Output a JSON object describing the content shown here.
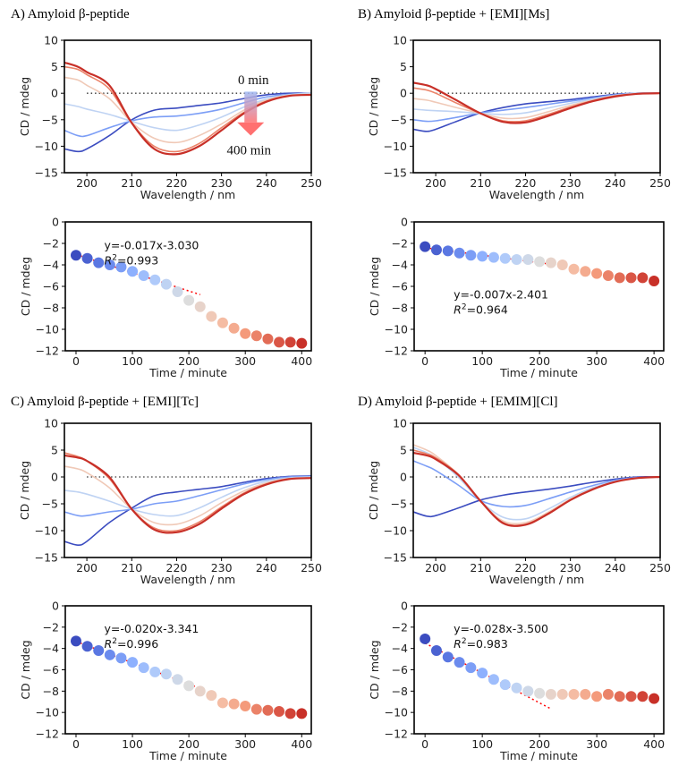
{
  "chart_data": [
    {
      "type": "line",
      "title": "A) Amyloid β-peptide",
      "xlabel": "Wavelength / nm",
      "ylabel": "CD / mdeg",
      "xlim": [
        195,
        250
      ],
      "ylim": [
        -15,
        10
      ],
      "xticks": [
        200,
        210,
        220,
        230,
        240,
        250
      ],
      "yticks": [
        10,
        5,
        0,
        -5,
        -10,
        -15
      ],
      "colormap": "coolwarm",
      "annotations": {
        "start": "0 min",
        "end": "400 min"
      },
      "x": [
        195,
        198,
        200,
        205,
        210,
        215,
        220,
        225,
        230,
        235,
        240,
        245,
        250
      ],
      "series": [
        {
          "time_min": 0,
          "values": [
            -10.5,
            -11,
            -10.5,
            -8,
            -5,
            -3.2,
            -2.8,
            -2.3,
            -1.8,
            -1,
            -0.3,
            0,
            0
          ]
        },
        {
          "time_min": 80,
          "values": [
            -7,
            -8,
            -8,
            -6.5,
            -5.2,
            -4.5,
            -4.3,
            -3.8,
            -3,
            -1.8,
            -0.7,
            -0.2,
            0
          ]
        },
        {
          "time_min": 160,
          "values": [
            -2,
            -2.5,
            -3,
            -4,
            -5.3,
            -6.5,
            -7,
            -6,
            -4.5,
            -2.6,
            -1.1,
            -0.3,
            0
          ]
        },
        {
          "time_min": 240,
          "values": [
            3,
            2.5,
            1.5,
            -1,
            -5.5,
            -8.5,
            -9.3,
            -8,
            -5.8,
            -3.2,
            -1.3,
            -0.4,
            -0.2
          ]
        },
        {
          "time_min": 320,
          "values": [
            5,
            4.5,
            3.5,
            0.8,
            -5.6,
            -10,
            -11,
            -9.5,
            -6.5,
            -3.6,
            -1.5,
            -0.5,
            -0.3
          ]
        },
        {
          "time_min": 400,
          "values": [
            5.8,
            5,
            4,
            1.5,
            -5.6,
            -10.5,
            -11.5,
            -10,
            -7,
            -3.8,
            -1.6,
            -0.5,
            -0.3
          ]
        }
      ]
    },
    {
      "type": "scatter",
      "xlabel": "Time / minute",
      "ylabel": "CD / mdeg",
      "xlim": [
        -19,
        417
      ],
      "ylim": [
        -12,
        0
      ],
      "xticks": [
        0,
        100,
        200,
        300,
        400
      ],
      "yticks": [
        0,
        -2,
        -4,
        -6,
        -8,
        -10,
        -12
      ],
      "colormap": "coolwarm",
      "x": [
        0,
        20,
        40,
        60,
        80,
        100,
        120,
        140,
        160,
        180,
        200,
        220,
        240,
        260,
        280,
        300,
        320,
        340,
        360,
        380,
        400
      ],
      "values": [
        -3.1,
        -3.4,
        -3.8,
        -4.0,
        -4.2,
        -4.6,
        -5.0,
        -5.4,
        -5.8,
        -6.5,
        -7.3,
        -7.9,
        -8.8,
        -9.4,
        -9.9,
        -10.4,
        -10.6,
        -10.9,
        -11.2,
        -11.2,
        -11.3
      ],
      "fit": {
        "slope": -0.017,
        "intercept": -3.03,
        "x_range": [
          0,
          220
        ],
        "color": "#ff0000",
        "equation": "y=-0.017x-3.030",
        "r2_label": "R",
        "r2_value": "=0.993"
      }
    },
    {
      "type": "line",
      "title": "B) Amyloid β-peptide + [EMI][Ms]",
      "xlabel": "Wavelength / nm",
      "ylabel": "CD / mdeg",
      "xlim": [
        195,
        250
      ],
      "ylim": [
        -15,
        10
      ],
      "xticks": [
        200,
        210,
        220,
        230,
        240,
        250
      ],
      "yticks": [
        10,
        5,
        0,
        -5,
        -10,
        -15
      ],
      "colormap": "coolwarm",
      "x": [
        195,
        198,
        200,
        205,
        210,
        215,
        220,
        225,
        230,
        235,
        240,
        245,
        250
      ],
      "series": [
        {
          "time_min": 0,
          "values": [
            -6.8,
            -7.2,
            -6.8,
            -5.2,
            -3.7,
            -2.7,
            -2,
            -1.6,
            -1.2,
            -0.7,
            -0.2,
            0,
            0
          ]
        },
        {
          "time_min": 80,
          "values": [
            -5,
            -5.3,
            -5.2,
            -4.5,
            -3.7,
            -3.2,
            -2.7,
            -2.1,
            -1.5,
            -0.9,
            -0.3,
            0,
            0
          ]
        },
        {
          "time_min": 160,
          "values": [
            -3,
            -3.2,
            -3.3,
            -3.5,
            -3.8,
            -4,
            -3.7,
            -2.8,
            -1.9,
            -1.1,
            -0.4,
            0,
            0
          ]
        },
        {
          "time_min": 240,
          "values": [
            -1,
            -1.3,
            -1.7,
            -2.8,
            -3.8,
            -4.7,
            -4.6,
            -3.5,
            -2.3,
            -1.3,
            -0.5,
            -0.1,
            0
          ]
        },
        {
          "time_min": 320,
          "values": [
            1,
            0.6,
            0,
            -2,
            -3.8,
            -5.2,
            -5.2,
            -4,
            -2.6,
            -1.4,
            -0.5,
            -0.1,
            0
          ]
        },
        {
          "time_min": 400,
          "values": [
            2,
            1.5,
            0.8,
            -1.5,
            -3.8,
            -5.4,
            -5.5,
            -4.3,
            -2.8,
            -1.5,
            -0.6,
            -0.1,
            0
          ]
        }
      ]
    },
    {
      "type": "scatter",
      "xlabel": "Time / minute",
      "ylabel": "CD / mdeg",
      "xlim": [
        -19,
        417
      ],
      "ylim": [
        -12,
        0
      ],
      "xticks": [
        0,
        100,
        200,
        300,
        400
      ],
      "yticks": [
        0,
        -2,
        -4,
        -6,
        -8,
        -10,
        -12
      ],
      "colormap": "coolwarm",
      "x": [
        0,
        20,
        40,
        60,
        80,
        100,
        120,
        140,
        160,
        180,
        200,
        220,
        240,
        260,
        280,
        300,
        320,
        340,
        360,
        380,
        400
      ],
      "values": [
        -2.3,
        -2.6,
        -2.7,
        -2.9,
        -3.1,
        -3.2,
        -3.3,
        -3.4,
        -3.5,
        -3.5,
        -3.7,
        -3.8,
        -4.0,
        -4.4,
        -4.6,
        -4.8,
        -5.0,
        -5.2,
        -5.2,
        -5.2,
        -5.5
      ],
      "fit": {
        "slope": -0.007,
        "intercept": -2.401,
        "x_range": [
          0,
          220
        ],
        "color": "#ff0000",
        "equation": "y=-0.007x-2.401",
        "r2_label": "R",
        "r2_value": "=0.964"
      }
    },
    {
      "type": "line",
      "title": "C) Amyloid β-peptide  + [EMI][Tc]",
      "xlabel": "Wavelength / nm",
      "ylabel": "CD / mdeg",
      "xlim": [
        195,
        250
      ],
      "ylim": [
        -15,
        10
      ],
      "xticks": [
        200,
        210,
        220,
        230,
        240,
        250
      ],
      "yticks": [
        10,
        5,
        0,
        -5,
        -10,
        -15
      ],
      "colormap": "coolwarm",
      "x": [
        195,
        198,
        200,
        205,
        210,
        215,
        220,
        225,
        230,
        235,
        240,
        245,
        250
      ],
      "series": [
        {
          "time_min": 0,
          "values": [
            -12,
            -12.7,
            -12,
            -8.5,
            -5.8,
            -3.5,
            -2.8,
            -2.3,
            -1.8,
            -1,
            -0.3,
            0.1,
            0.2
          ]
        },
        {
          "time_min": 80,
          "values": [
            -6.5,
            -7.2,
            -7.2,
            -6.5,
            -6,
            -5,
            -4.5,
            -3.5,
            -2.4,
            -1.3,
            -0.5,
            0,
            0.1
          ]
        },
        {
          "time_min": 160,
          "values": [
            -2.5,
            -2.8,
            -3.2,
            -4.5,
            -6,
            -7,
            -7.2,
            -5.8,
            -3.8,
            -2,
            -0.8,
            -0.2,
            0
          ]
        },
        {
          "time_min": 240,
          "values": [
            2,
            1.5,
            0.8,
            -2,
            -6,
            -8.5,
            -8.8,
            -7.3,
            -4.8,
            -2.6,
            -1.1,
            -0.3,
            -0.1
          ]
        },
        {
          "time_min": 320,
          "values": [
            4.5,
            3.8,
            3,
            -0.3,
            -6,
            -9.5,
            -10,
            -8.4,
            -5.6,
            -3,
            -1.3,
            -0.4,
            -0.2
          ]
        },
        {
          "time_min": 400,
          "values": [
            4,
            3.6,
            3,
            0,
            -6,
            -9.8,
            -10.3,
            -8.8,
            -5.9,
            -3.2,
            -1.4,
            -0.4,
            -0.2
          ]
        }
      ]
    },
    {
      "type": "scatter",
      "xlabel": "Time / minute",
      "ylabel": "CD / mdeg",
      "xlim": [
        -19,
        417
      ],
      "ylim": [
        -12,
        0
      ],
      "xticks": [
        0,
        100,
        200,
        300,
        400
      ],
      "yticks": [
        0,
        -2,
        -4,
        -6,
        -8,
        -10,
        -12
      ],
      "colormap": "coolwarm",
      "x": [
        0,
        20,
        40,
        60,
        80,
        100,
        120,
        140,
        160,
        180,
        200,
        220,
        240,
        260,
        280,
        300,
        320,
        340,
        360,
        380,
        400
      ],
      "values": [
        -3.3,
        -3.8,
        -4.2,
        -4.6,
        -4.9,
        -5.3,
        -5.8,
        -6.2,
        -6.4,
        -6.9,
        -7.5,
        -8.0,
        -8.4,
        -9.1,
        -9.2,
        -9.4,
        -9.7,
        -9.8,
        -9.9,
        -10.1,
        -10.1
      ],
      "fit": {
        "slope": -0.02,
        "intercept": -3.341,
        "x_range": [
          0,
          220
        ],
        "color": "#ff0000",
        "equation": "y=-0.020x-3.341",
        "r2_label": "R",
        "r2_value": "=0.996"
      }
    },
    {
      "type": "line",
      "title": "D) Amyloid β-peptide + [EMIM][Cl]",
      "xlabel": "Wavelength / nm",
      "ylabel": "CD / mdeg",
      "xlim": [
        195,
        250
      ],
      "ylim": [
        -15,
        10
      ],
      "xticks": [
        200,
        210,
        220,
        230,
        240,
        250
      ],
      "yticks": [
        10,
        5,
        0,
        -5,
        -10,
        -15
      ],
      "colormap": "coolwarm",
      "x": [
        195,
        198,
        200,
        205,
        210,
        215,
        220,
        225,
        230,
        235,
        240,
        245,
        250
      ],
      "series": [
        {
          "time_min": 0,
          "values": [
            -6.5,
            -7.3,
            -7.2,
            -5.8,
            -4.3,
            -3.4,
            -2.8,
            -2.3,
            -1.7,
            -1,
            -0.4,
            0,
            0
          ]
        },
        {
          "time_min": 80,
          "values": [
            3,
            2,
            1.2,
            -1.5,
            -4.4,
            -5.5,
            -5.3,
            -4.1,
            -2.8,
            -1.6,
            -0.6,
            -0.1,
            0
          ]
        },
        {
          "time_min": 160,
          "values": [
            5.5,
            4.5,
            3.5,
            0,
            -4.5,
            -7.5,
            -7.8,
            -6,
            -3.8,
            -2,
            -0.8,
            -0.2,
            0
          ]
        },
        {
          "time_min": 240,
          "values": [
            6,
            5,
            4,
            0.5,
            -4.5,
            -8.2,
            -8.5,
            -6.6,
            -4.1,
            -2.2,
            -0.9,
            -0.2,
            0
          ]
        },
        {
          "time_min": 320,
          "values": [
            5,
            4.3,
            3.6,
            0.5,
            -4.5,
            -8.5,
            -8.8,
            -6.8,
            -4.3,
            -2.3,
            -0.9,
            -0.2,
            0
          ]
        },
        {
          "time_min": 400,
          "values": [
            4.5,
            4,
            3.3,
            0.4,
            -4.5,
            -8.6,
            -8.9,
            -6.9,
            -4.3,
            -2.3,
            -0.9,
            -0.2,
            0
          ]
        }
      ]
    },
    {
      "type": "scatter",
      "xlabel": "Time / minute",
      "ylabel": "CD / mdeg",
      "xlim": [
        -19,
        417
      ],
      "ylim": [
        -12,
        0
      ],
      "xticks": [
        0,
        100,
        200,
        300,
        400
      ],
      "yticks": [
        0,
        -2,
        -4,
        -6,
        -8,
        -10,
        -12
      ],
      "colormap": "coolwarm",
      "x": [
        0,
        20,
        40,
        60,
        80,
        100,
        120,
        140,
        160,
        180,
        200,
        220,
        240,
        260,
        280,
        300,
        320,
        340,
        360,
        380,
        400
      ],
      "values": [
        -3.1,
        -4.2,
        -4.8,
        -5.3,
        -5.8,
        -6.3,
        -6.9,
        -7.4,
        -7.7,
        -8.0,
        -8.2,
        -8.3,
        -8.3,
        -8.3,
        -8.3,
        -8.5,
        -8.3,
        -8.5,
        -8.5,
        -8.5,
        -8.7
      ],
      "fit": {
        "slope": -0.028,
        "intercept": -3.5,
        "x_range": [
          0,
          220
        ],
        "color": "#ff0000",
        "equation": "y=-0.028x-3.500",
        "r2_label": "R",
        "r2_value": "=0.983"
      }
    }
  ]
}
